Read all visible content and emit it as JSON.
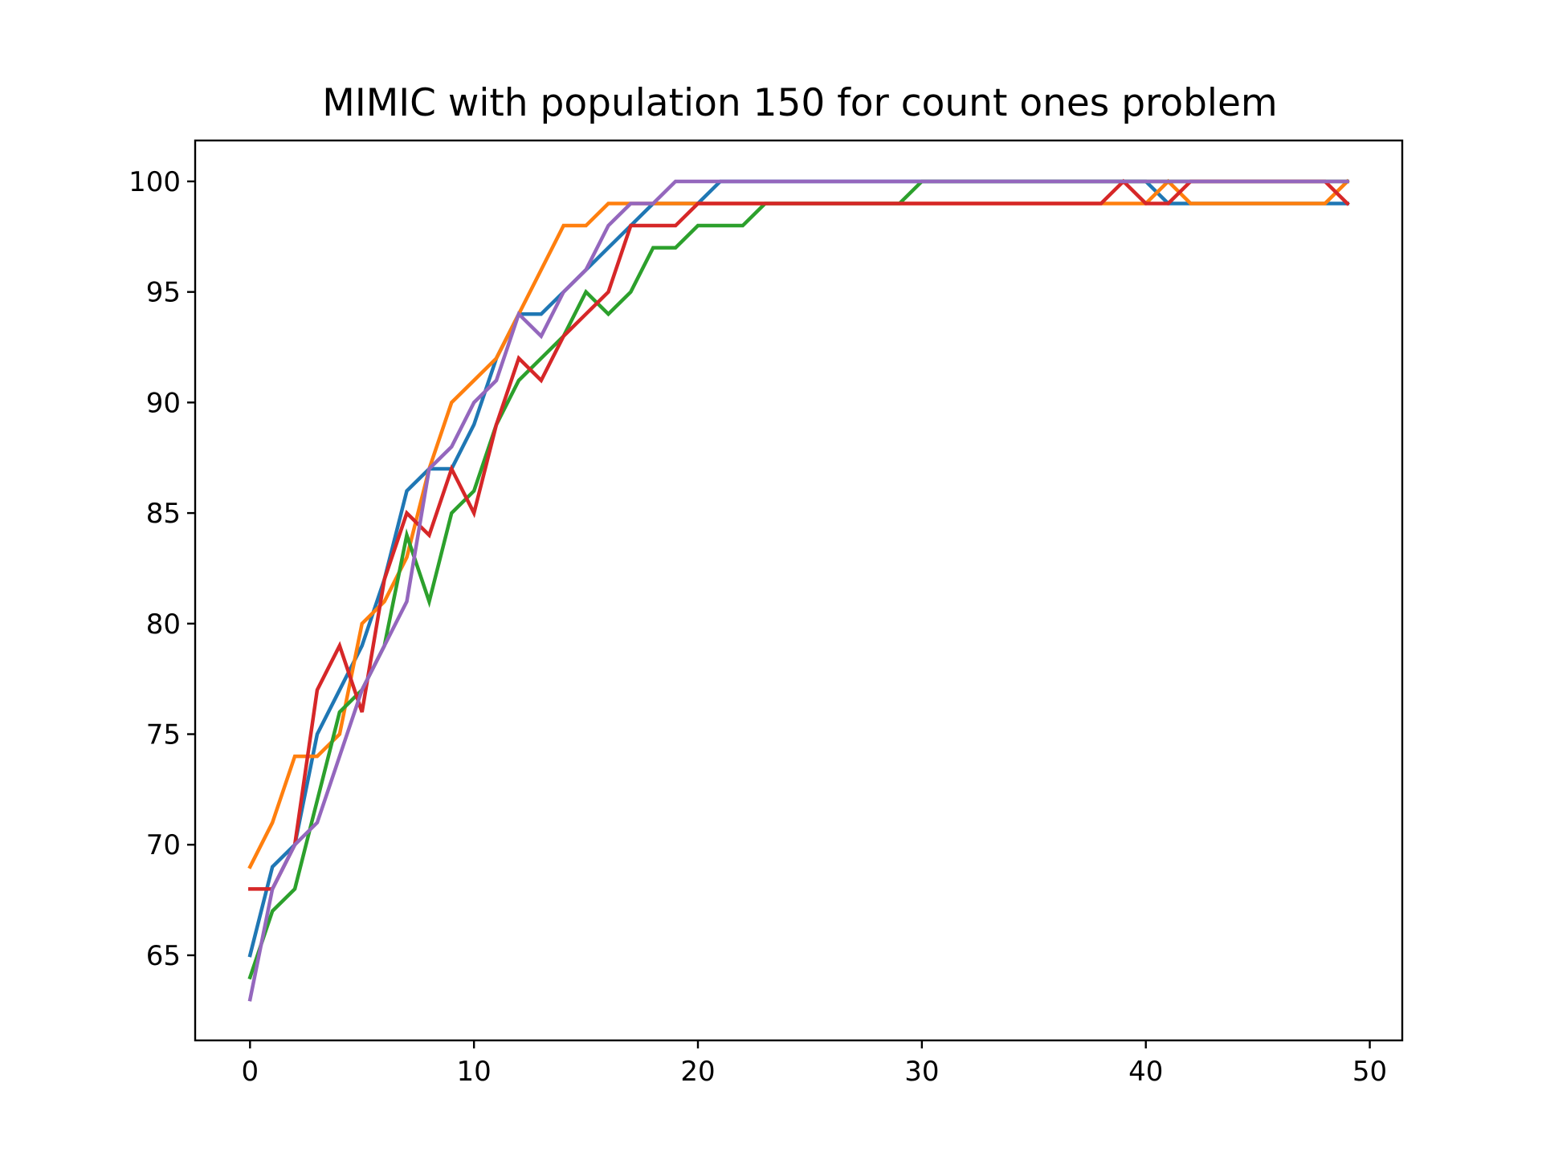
{
  "chart_data": {
    "type": "line",
    "title": "MIMIC with population 150 for count ones problem",
    "xlabel": "",
    "ylabel": "",
    "xlim": [
      -2.45,
      51.45
    ],
    "ylim": [
      61.15,
      101.85
    ],
    "xticks": [
      0,
      10,
      20,
      30,
      40,
      50
    ],
    "yticks": [
      65,
      70,
      75,
      80,
      85,
      90,
      95,
      100
    ],
    "grid": false,
    "legend": "none",
    "x": [
      0,
      1,
      2,
      3,
      4,
      5,
      6,
      7,
      8,
      9,
      10,
      11,
      12,
      13,
      14,
      15,
      16,
      17,
      18,
      19,
      20,
      21,
      22,
      23,
      24,
      25,
      26,
      27,
      28,
      29,
      30,
      31,
      32,
      33,
      34,
      35,
      36,
      37,
      38,
      39,
      40,
      41,
      42,
      43,
      44,
      45,
      46,
      47,
      48,
      49
    ],
    "series": [
      {
        "color": "#1f77b4",
        "values": [
          65,
          69,
          70,
          75,
          77,
          79,
          82,
          86,
          87,
          87,
          89,
          92,
          94,
          94,
          95,
          96,
          97,
          98,
          99,
          99,
          99,
          100,
          100,
          100,
          100,
          100,
          100,
          100,
          100,
          100,
          100,
          100,
          100,
          100,
          100,
          100,
          100,
          100,
          100,
          100,
          100,
          99,
          99,
          99,
          99,
          99,
          99,
          99,
          99,
          99
        ]
      },
      {
        "color": "#ff7f0e",
        "values": [
          69,
          71,
          74,
          74,
          75,
          80,
          81,
          83,
          87,
          90,
          91,
          92,
          94,
          96,
          98,
          98,
          99,
          99,
          99,
          99,
          99,
          99,
          99,
          99,
          99,
          99,
          99,
          99,
          99,
          99,
          99,
          99,
          99,
          99,
          99,
          99,
          99,
          99,
          99,
          99,
          99,
          100,
          99,
          99,
          99,
          99,
          99,
          99,
          99,
          100
        ]
      },
      {
        "color": "#2ca02c",
        "values": [
          64,
          67,
          68,
          72,
          76,
          77,
          79,
          84,
          81,
          85,
          86,
          89,
          91,
          92,
          93,
          95,
          94,
          95,
          97,
          97,
          98,
          98,
          98,
          99,
          99,
          99,
          99,
          99,
          99,
          99,
          100,
          100,
          100,
          100,
          100,
          100,
          100,
          100,
          100,
          100,
          100,
          100,
          100,
          100,
          100,
          100,
          100,
          100,
          100,
          100
        ]
      },
      {
        "color": "#d62728",
        "values": [
          68,
          68,
          70,
          77,
          79,
          76,
          82,
          85,
          84,
          87,
          85,
          89,
          92,
          91,
          93,
          94,
          95,
          98,
          98,
          98,
          99,
          99,
          99,
          99,
          99,
          99,
          99,
          99,
          99,
          99,
          99,
          99,
          99,
          99,
          99,
          99,
          99,
          99,
          99,
          100,
          99,
          99,
          100,
          100,
          100,
          100,
          100,
          100,
          100,
          99
        ]
      },
      {
        "color": "#9467bd",
        "values": [
          63,
          68,
          70,
          71,
          74,
          77,
          79,
          81,
          87,
          88,
          90,
          91,
          94,
          93,
          95,
          96,
          98,
          99,
          99,
          100,
          100,
          100,
          100,
          100,
          100,
          100,
          100,
          100,
          100,
          100,
          100,
          100,
          100,
          100,
          100,
          100,
          100,
          100,
          100,
          100,
          100,
          100,
          100,
          100,
          100,
          100,
          100,
          100,
          100,
          100
        ]
      }
    ]
  }
}
